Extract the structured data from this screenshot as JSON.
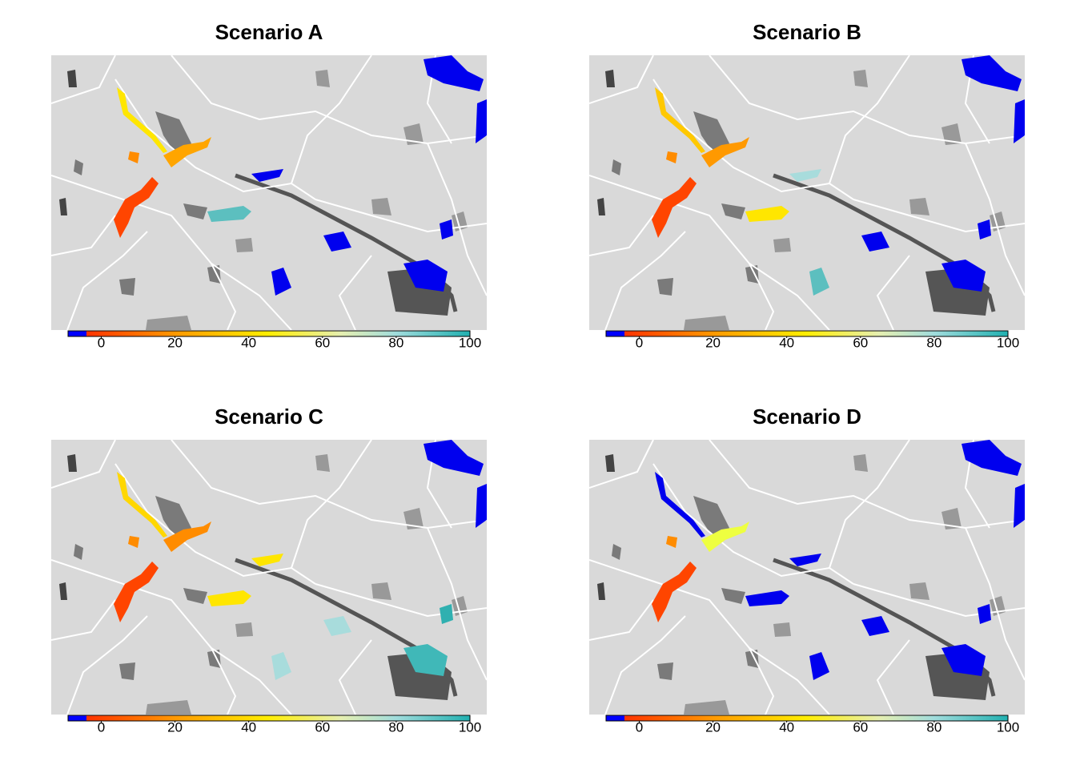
{
  "panels": [
    {
      "title": "Scenario A"
    },
    {
      "title": "Scenario B"
    },
    {
      "title": "Scenario C"
    },
    {
      "title": "Scenario D"
    }
  ],
  "colorbar": {
    "lim": [
      -9,
      100
    ],
    "ticks": [
      0,
      20,
      40,
      60,
      80,
      100
    ],
    "stops": [
      {
        "value": -9,
        "color": "#0000ff"
      },
      {
        "value": -4,
        "color": "#0000ff"
      },
      {
        "value": -4,
        "color": "#ff3300"
      },
      {
        "value": 20,
        "color": "#ff9900"
      },
      {
        "value": 45,
        "color": "#ffee00"
      },
      {
        "value": 65,
        "color": "#e6efb0"
      },
      {
        "value": 80,
        "color": "#a0dcdc"
      },
      {
        "value": 100,
        "color": "#20b0b0"
      }
    ]
  }
}
